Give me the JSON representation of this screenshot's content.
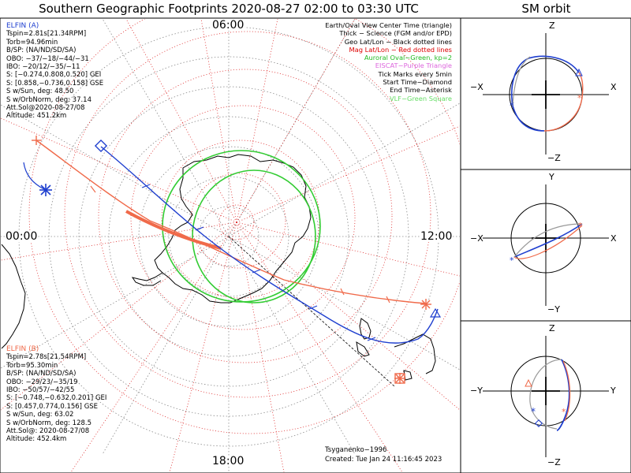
{
  "title": "Southern Geographic Footprints 2020-08-27 02:00 to 03:30 UTC",
  "sm_title": "SM orbit",
  "hour_labels": {
    "top": "06:00",
    "left": "00:00",
    "right": "12:00",
    "bottom": "18:00"
  },
  "elfin_a": {
    "header": "ELFIN (A)",
    "lines": [
      "Tspin=2.81s[21.34RPM]",
      "Torb=94.96min",
      "B/SP: (NA/ND/SD/SA)",
      "OBO: −37/−18/−44/−31",
      "IBO: −20/12/−35/−11",
      "S: [−0.274,0.808,0.520] GEI",
      "S: [0.858,−0.736,0.158] GSE",
      "S w/Sun, deg: 48.50",
      "S w/OrbNorm, deg: 37.14",
      "Att.Sol@2020-08-27/08",
      "Altitude: 451.2km"
    ],
    "color": "#1f3fcf"
  },
  "elfin_b": {
    "header": "ELFIN (B)",
    "lines": [
      "Tspin=2.78s[21.54RPM]",
      "Torb=95.30min",
      "B/SP: (NA/ND/SD/SA)",
      "OBO: −29/23/−35/19",
      "IBO: −50/57/−42/55",
      "S: [−0.748,−0.632,0.201] GEI",
      "S: [0.457,0.774,0.156] GSE",
      "S w/Sun, deg: 63.02",
      "S w/OrbNorm, deg: 128.5",
      "Att.Sol@: 2020-08-27/08",
      "Altitude: 452.4km"
    ],
    "color": "#f06a4a"
  },
  "legend": [
    {
      "text": "Earth/Oval View Center Time (triangle)",
      "color": "#000000"
    },
    {
      "text": "Thick − Science (FGM and/or EPD)",
      "color": "#000000"
    },
    {
      "text": "Geo Lat/Lon − Black dotted lines",
      "color": "#000000"
    },
    {
      "text": "Mag Lat/Lon − Red dotted lines",
      "color": "#dd0000"
    },
    {
      "text": "Auroral Oval−Green, kp=2",
      "color": "#22bb22"
    },
    {
      "text": "EISCAT−Purple Triangle",
      "color": "#dd66dd"
    },
    {
      "text": "Tick Marks every 5min",
      "color": "#000000"
    },
    {
      "text": "Start Time−Diamond",
      "color": "#000000"
    },
    {
      "text": "End Time−Asterisk",
      "color": "#000000"
    },
    {
      "text": "VLF−Green Square",
      "color": "#66dd66"
    }
  ],
  "credit": {
    "line1": "Tsyganenko−1996",
    "line2": "Created: Tue Jan 24 11:16:45 2023"
  },
  "sm_panels": [
    {
      "top": "Z",
      "bottom": "−Z",
      "left": "−X",
      "right": "X"
    },
    {
      "top": "Y",
      "bottom": "−Y",
      "left": "−X",
      "right": "X"
    },
    {
      "top": "Z",
      "bottom": "−Z",
      "left": "−Y",
      "right": "Y"
    }
  ],
  "colors": {
    "a": "#1f3fcf",
    "b": "#f06a4a",
    "oval": "#33cc33",
    "mag_grid": "#dd2222",
    "geo_grid": "#888888"
  }
}
